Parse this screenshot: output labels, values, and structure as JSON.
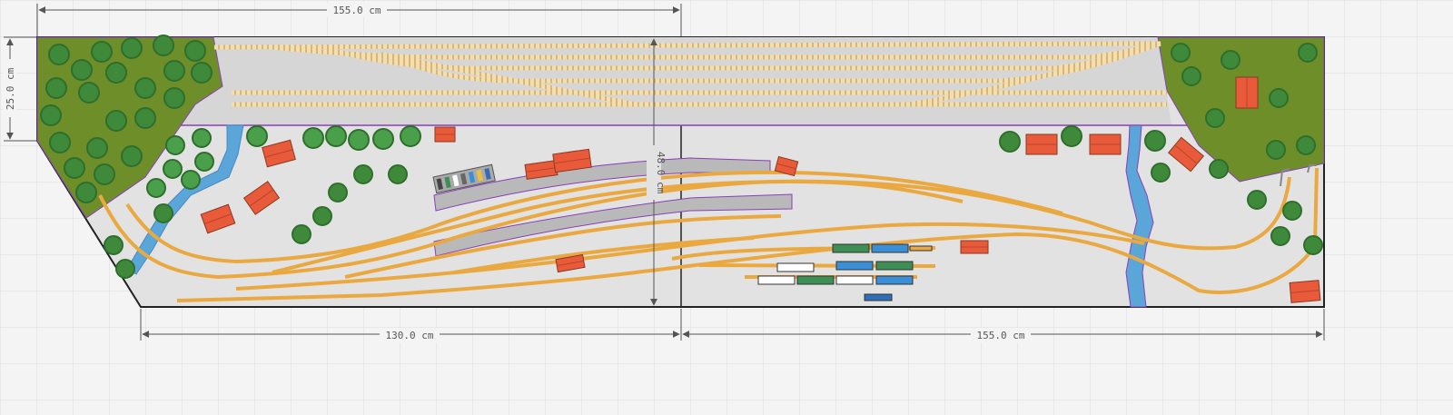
{
  "dimensions": {
    "top_width": "155.0 cm",
    "left_height": "25.0 cm",
    "bottom_left_width": "130.0 cm",
    "bottom_right_width": "155.0 cm",
    "center_depth": "48.0 cm"
  },
  "colors": {
    "background": "#f4f4f4",
    "grid": "#dddddd",
    "baseboard": "#e3e3e3",
    "grass": "#6e8e2a",
    "tree": "#3f8a3a",
    "tree_dark": "#2f6e2c",
    "water": "#5aa6d8",
    "track_main": "#e9a940",
    "track_hidden": "#f0d9a0",
    "platform": "#b9b9b9",
    "building": "#e85a3a",
    "wagon_green": "#3e8f55",
    "wagon_blue": "#3a8fd6",
    "wagon_white": "#ffffff",
    "outline_purple": "#8a3fb8"
  },
  "icons": [
    "tree-icon",
    "building-icon",
    "wagon-icon",
    "car-icon",
    "locomotive-icon",
    "dimension-arrow-icon"
  ]
}
